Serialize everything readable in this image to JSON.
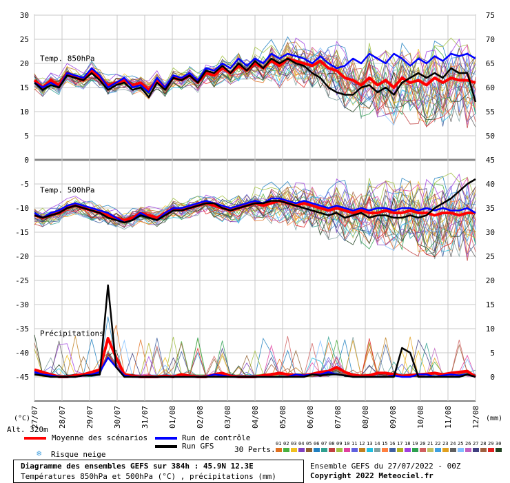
{
  "chart_data": {
    "type": "line",
    "title": "Diagramme des ensembles GEFS sur 384h : 45.9N 12.3E",
    "subtitle": "Températures 850hPa et 500hPa (°C) , précipitations (mm)",
    "x_labels": [
      "27/07",
      "28/07",
      "29/07",
      "30/07",
      "31/07",
      "01/08",
      "02/08",
      "03/08",
      "04/08",
      "05/08",
      "06/08",
      "07/08",
      "08/08",
      "09/08",
      "10/08",
      "11/08",
      "12/08"
    ],
    "left_axis_ticks": [
      30,
      25,
      20,
      15,
      10,
      5,
      0,
      -5,
      -10,
      -15,
      -20,
      -25,
      -30,
      -35,
      -40,
      -45
    ],
    "right_axis_ticks": [
      75,
      70,
      65,
      60,
      55,
      50,
      45,
      40,
      35,
      30,
      25,
      20,
      15,
      10,
      5,
      0
    ],
    "left_unit": "(°C)",
    "right_unit": "(mm)",
    "altitude": "Alt. 320m",
    "panel_labels": {
      "t850": "Temp. 850hPa",
      "t500": "Temp. 500hPa",
      "precip": "Précipitations"
    },
    "series": [
      {
        "name": "Moyenne des scénarios",
        "color": "#ff0000",
        "panel": "t850",
        "values": [
          16.5,
          15,
          16.5,
          15.5,
          18,
          17,
          16.5,
          18.5,
          17,
          15.5,
          16,
          16.5,
          15.5,
          16,
          14.5,
          16.5,
          15,
          17,
          16.5,
          17.5,
          16,
          18,
          17.5,
          19,
          18,
          19.5,
          18.5,
          20,
          19,
          20.5,
          19.5,
          21,
          20.5,
          20,
          19.5,
          20.5,
          19,
          18.5,
          17,
          16.5,
          15.5,
          17,
          15.5,
          16.5,
          15,
          17,
          16,
          16.5,
          15.5,
          17,
          16,
          17,
          16.5,
          16.5,
          16
        ]
      },
      {
        "name": "Run de contrôle",
        "color": "#0000ff",
        "panel": "t850",
        "values": [
          16,
          15,
          16,
          15,
          18,
          17.5,
          17,
          19,
          17.5,
          15,
          16,
          17,
          15,
          15.5,
          14,
          17,
          15,
          17.5,
          17,
          18,
          16.5,
          19,
          18.5,
          20,
          19,
          21,
          19.5,
          21,
          20,
          22,
          21,
          22,
          21.5,
          21,
          20,
          21.5,
          20,
          19,
          19.5,
          21,
          20,
          22,
          21,
          20,
          22,
          21,
          19.5,
          21,
          20,
          21.5,
          20.5,
          22,
          21.5,
          22,
          21
        ]
      },
      {
        "name": "Run GFS",
        "color": "#000000",
        "panel": "t850",
        "values": [
          16,
          14.5,
          15.5,
          15,
          17.5,
          17,
          16.5,
          18,
          16.5,
          14.5,
          15.5,
          16,
          14.5,
          15,
          13,
          16,
          14.5,
          17,
          16.5,
          17.5,
          16,
          18.5,
          18,
          19.5,
          18,
          20,
          18.5,
          20.5,
          19,
          21,
          20,
          21,
          20,
          19.5,
          18,
          17,
          15,
          14,
          13.5,
          13.5,
          15,
          15.5,
          14,
          15,
          13.5,
          16,
          17,
          18,
          17,
          18,
          17,
          19,
          18,
          18,
          12
        ]
      },
      {
        "name": "Moyenne des scénarios",
        "color": "#ff0000",
        "panel": "t500",
        "values": [
          -11.5,
          -12,
          -11.5,
          -11,
          -10,
          -9.5,
          -10,
          -10.5,
          -11,
          -11.5,
          -12,
          -12.5,
          -12,
          -11,
          -11.5,
          -12,
          -11,
          -10,
          -10.5,
          -10,
          -9.5,
          -9,
          -9.5,
          -10,
          -10.5,
          -10,
          -9.5,
          -9,
          -9.5,
          -9,
          -8.5,
          -9,
          -9.5,
          -9,
          -9.5,
          -10,
          -10.5,
          -10,
          -10.5,
          -11,
          -10.5,
          -11,
          -11,
          -10.5,
          -11,
          -11,
          -10.5,
          -11,
          -11,
          -11.5,
          -11,
          -11,
          -11.5,
          -11,
          -11
        ]
      },
      {
        "name": "Run de contrôle",
        "color": "#0000ff",
        "panel": "t500",
        "values": [
          -11,
          -12,
          -11,
          -10.5,
          -9.5,
          -9,
          -9.5,
          -10,
          -10.5,
          -11,
          -12,
          -13,
          -12.5,
          -11,
          -12,
          -12.5,
          -11,
          -10,
          -10,
          -9.5,
          -9,
          -8.5,
          -9,
          -9.5,
          -10,
          -9.5,
          -9,
          -8.5,
          -9,
          -8,
          -8,
          -8.5,
          -9,
          -8.5,
          -9,
          -9.5,
          -10,
          -9.5,
          -10,
          -10.5,
          -10,
          -10.5,
          -10,
          -10,
          -10.5,
          -10,
          -10,
          -10.5,
          -10,
          -10.5,
          -10,
          -10.5,
          -10.5,
          -10,
          -11
        ]
      },
      {
        "name": "Run GFS",
        "color": "#000000",
        "panel": "t500",
        "values": [
          -11.5,
          -12,
          -11.5,
          -11,
          -10,
          -9.5,
          -10,
          -10.5,
          -11,
          -12,
          -12.5,
          -13,
          -12.5,
          -11.5,
          -12,
          -12.5,
          -11.5,
          -10.5,
          -10.5,
          -10,
          -9.5,
          -9,
          -9,
          -10,
          -10.5,
          -10,
          -9.5,
          -9,
          -9,
          -8.5,
          -8.5,
          -9,
          -9.5,
          -10,
          -10.5,
          -11,
          -11.5,
          -11,
          -12,
          -11.5,
          -11,
          -12,
          -11.5,
          -11.5,
          -12,
          -12,
          -11.5,
          -12,
          -11.5,
          -10,
          -9,
          -8,
          -6.5,
          -5,
          -4
        ]
      },
      {
        "name": "Moyenne des scénarios",
        "color": "#ff0000",
        "panel": "precip",
        "values": [
          1.5,
          1,
          0.5,
          0,
          0,
          0.3,
          0.5,
          1,
          1.5,
          8,
          4,
          0.5,
          0.2,
          0,
          0,
          0,
          0.2,
          0,
          0.5,
          0.2,
          0,
          0,
          0.5,
          0.8,
          0.2,
          0,
          0,
          0,
          0.3,
          0.5,
          0.8,
          0.5,
          0.4,
          0.3,
          0.6,
          1,
          1.2,
          2,
          1,
          0.4,
          0.2,
          0.3,
          0.8,
          0.8,
          0.5,
          0.2,
          0.3,
          0.5,
          0.6,
          0.8,
          0.5,
          0.8,
          1,
          1.2,
          0
        ]
      },
      {
        "name": "Run de contrôle",
        "color": "#0000ff",
        "panel": "precip",
        "values": [
          1,
          0.5,
          0.3,
          0,
          0,
          0,
          0.3,
          0.5,
          1,
          4,
          2,
          0.3,
          0,
          0,
          0,
          0,
          0,
          0,
          0,
          0,
          0,
          0,
          0.5,
          0.3,
          0,
          0,
          0,
          0,
          0,
          0,
          0,
          0,
          0.5,
          0.3,
          0.5,
          0.5,
          1,
          0.5,
          0.3,
          0,
          0,
          0,
          0,
          0,
          0.3,
          0,
          0,
          0.5,
          0.5,
          0,
          0.3,
          0.5,
          0.3,
          0.5,
          0
        ]
      },
      {
        "name": "Run GFS",
        "color": "#000000",
        "panel": "precip",
        "values": [
          0.5,
          0.3,
          0,
          0,
          0,
          0,
          0.3,
          0.3,
          0.5,
          19,
          2,
          0,
          0,
          0,
          0,
          0,
          0,
          0,
          0,
          0,
          0,
          0,
          0,
          0,
          0,
          0,
          0,
          0,
          0,
          0,
          0,
          0,
          0,
          0,
          0.5,
          0.3,
          0.5,
          0.5,
          0.3,
          0,
          0,
          0,
          0,
          0,
          0,
          6,
          5,
          0,
          0,
          0,
          0,
          0,
          0,
          0.5,
          0
        ]
      }
    ],
    "legend": [
      {
        "label": "Moyenne des scénarios",
        "color": "#ff0000"
      },
      {
        "label": "Run de contrôle",
        "color": "#0000ff"
      },
      {
        "label": "Run GFS",
        "color": "#000000"
      },
      {
        "label": "Risque neige",
        "color": "#4aa3df"
      }
    ],
    "perturbations_label": "30 Perts.",
    "perturbation_ids": [
      "01",
      "02",
      "03",
      "04",
      "05",
      "06",
      "07",
      "08",
      "09",
      "10",
      "11",
      "12",
      "13",
      "14",
      "15",
      "16",
      "17",
      "18",
      "19",
      "20",
      "21",
      "22",
      "23",
      "24",
      "25",
      "26",
      "27",
      "28",
      "29",
      "30"
    ],
    "perturbation_colors": [
      "#e07020",
      "#4ab040",
      "#f0c020",
      "#8040c0",
      "#906030",
      "#2080c0",
      "#30a090",
      "#c04040",
      "#a0c040",
      "#e040a0",
      "#6060e0",
      "#c08020",
      "#20c0e0",
      "#80a0a0",
      "#ff8040",
      "#4060a0",
      "#b0b020",
      "#a040e0",
      "#2ea050",
      "#d06060",
      "#c0c060",
      "#40a0e0",
      "#e0a020",
      "#606060",
      "#80c0ff",
      "#c060c0",
      "#404080",
      "#a06040",
      "#e02020",
      "#204020"
    ]
  },
  "footer": {
    "title": "Diagramme des ensembles GEFS sur 384h : 45.9N 12.3E",
    "subtitle": "Températures 850hPa et 500hPa (°C) , précipitations (mm)",
    "ensemble_run": "Ensemble GEFS du 27/07/2022 - 00Z",
    "copyright": "Copyright 2022 Meteociel.fr"
  }
}
